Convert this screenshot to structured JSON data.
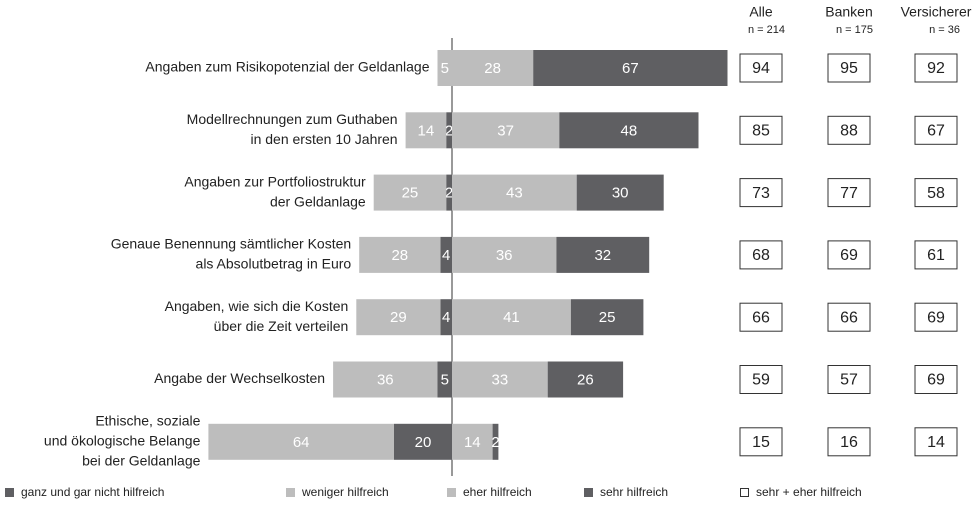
{
  "chart_data": {
    "type": "diverging-bar",
    "categories": [
      [
        "Angaben zum Risikopotenzial der Geldanlage"
      ],
      [
        "Modellrechnungen zum Guthaben",
        "in den ersten 10 Jahren"
      ],
      [
        "Angaben zur Portfoliostruktur",
        "der Geldanlage"
      ],
      [
        "Genaue Benennung sämtlicher Kosten",
        "als Absolutbetrag in Euro"
      ],
      [
        "Angaben, wie sich die Kosten",
        "über die Zeit verteilen"
      ],
      [
        "Angabe der Wechselkosten"
      ],
      [
        "Ethische, soziale",
        "und ökologische Belange",
        "bei der Geldanlage"
      ]
    ],
    "series": [
      {
        "name": "ganz und gar nicht hilfreich",
        "color": "#5f5f62",
        "side": "negative",
        "values": [
          0,
          2,
          2,
          4,
          4,
          5,
          20
        ]
      },
      {
        "name": "weniger hilfreich",
        "color": "#bdbdbd",
        "side": "negative",
        "values": [
          5,
          14,
          25,
          28,
          29,
          36,
          64
        ]
      },
      {
        "name": "eher hilfreich",
        "color": "#bdbdbd",
        "side": "positive",
        "values": [
          28,
          37,
          43,
          36,
          41,
          33,
          14
        ]
      },
      {
        "name": "sehr hilfreich",
        "color": "#5f5f62",
        "side": "positive",
        "values": [
          67,
          48,
          30,
          32,
          25,
          26,
          2
        ]
      }
    ],
    "columns": [
      {
        "name": "Alle",
        "n": "n = 214",
        "values": [
          94,
          85,
          73,
          68,
          66,
          59,
          15
        ]
      },
      {
        "name": "Banken",
        "n": "n = 175",
        "values": [
          95,
          88,
          77,
          69,
          66,
          57,
          16
        ]
      },
      {
        "name": "Versicherer",
        "n": "n = 36",
        "values": [
          92,
          67,
          58,
          61,
          69,
          69,
          14
        ]
      }
    ],
    "columns_legend": "sehr + eher hilfreich"
  }
}
